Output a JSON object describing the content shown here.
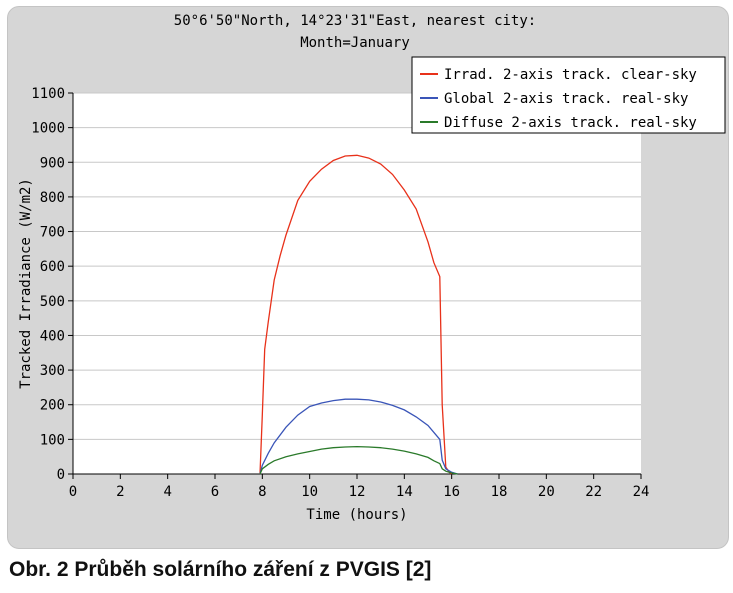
{
  "chart_data": {
    "type": "line",
    "title_lines": [
      "50°6'50\"North, 14°23'31\"East, nearest city:",
      "Month=January"
    ],
    "xlabel": "Time (hours)",
    "ylabel": "Tracked Irradiance (W/m2)",
    "xlim": [
      0,
      24
    ],
    "ylim": [
      0,
      1100
    ],
    "xticks": [
      0,
      2,
      4,
      6,
      8,
      10,
      12,
      14,
      16,
      18,
      20,
      22,
      24
    ],
    "yticks": [
      0,
      100,
      200,
      300,
      400,
      500,
      600,
      700,
      800,
      900,
      1000,
      1100
    ],
    "grid": true,
    "legend_position": "top-right",
    "series": [
      {
        "name": "Irrad. 2-axis track. clear-sky",
        "color": "#e8311a",
        "x": [
          7.9,
          8.0,
          8.1,
          8.25,
          8.5,
          8.75,
          9.0,
          9.5,
          10.0,
          10.5,
          11.0,
          11.5,
          12.0,
          12.5,
          13.0,
          13.5,
          14.0,
          14.5,
          15.0,
          15.25,
          15.5,
          15.6,
          15.75,
          15.9,
          16.0
        ],
        "y": [
          0,
          170,
          360,
          440,
          560,
          630,
          690,
          790,
          845,
          880,
          905,
          918,
          920,
          912,
          895,
          865,
          820,
          765,
          670,
          610,
          570,
          200,
          20,
          5,
          0
        ]
      },
      {
        "name": "Global 2-axis track. real-sky",
        "color": "#3a55b8",
        "x": [
          7.9,
          8.0,
          8.25,
          8.5,
          9.0,
          9.5,
          10.0,
          10.5,
          11.0,
          11.5,
          12.0,
          12.5,
          13.0,
          13.5,
          14.0,
          14.5,
          15.0,
          15.25,
          15.5,
          15.6,
          15.75,
          16.0,
          16.25
        ],
        "y": [
          0,
          25,
          60,
          90,
          135,
          170,
          195,
          205,
          212,
          216,
          216,
          214,
          208,
          198,
          185,
          165,
          140,
          120,
          100,
          40,
          15,
          5,
          0
        ]
      },
      {
        "name": "Diffuse 2-axis track. real-sky",
        "color": "#2a7a2a",
        "x": [
          7.9,
          8.0,
          8.25,
          8.5,
          9.0,
          9.5,
          10.0,
          10.5,
          11.0,
          11.5,
          12.0,
          12.5,
          13.0,
          13.5,
          14.0,
          14.5,
          15.0,
          15.25,
          15.5,
          15.6,
          15.75,
          16.0,
          16.25
        ],
        "y": [
          0,
          15,
          28,
          38,
          50,
          58,
          65,
          72,
          76,
          78,
          79,
          78,
          76,
          72,
          66,
          58,
          48,
          38,
          30,
          15,
          8,
          3,
          0
        ]
      }
    ]
  },
  "caption": "Obr. 2 Průběh solárního záření z PVGIS [2]"
}
